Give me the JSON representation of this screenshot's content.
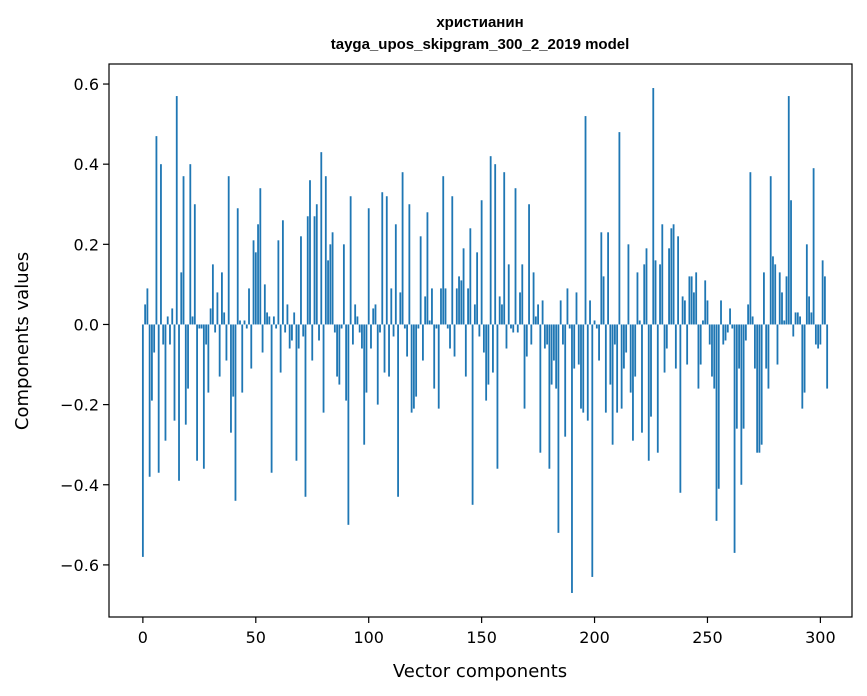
{
  "chart_data": {
    "type": "bar",
    "title": "христианин",
    "subtitle": "tayga_upos_skipgram_300_2_2019 model",
    "xlabel": "Vector components",
    "ylabel": "Components values",
    "xlim": [
      -15,
      314
    ],
    "ylim": [
      -0.73,
      0.65
    ],
    "xticks": [
      0,
      50,
      100,
      150,
      200,
      250,
      300
    ],
    "yticks": [
      -0.6,
      -0.4,
      -0.2,
      0.0,
      0.2,
      0.4,
      0.6
    ],
    "ytick_labels": [
      "−0.6",
      "−0.4",
      "−0.2",
      "0.0",
      "0.2",
      "0.4",
      "0.6"
    ],
    "bar_color": "#1f77b4",
    "values": [
      -0.58,
      0.05,
      0.09,
      -0.38,
      -0.19,
      -0.07,
      0.47,
      -0.37,
      0.4,
      -0.05,
      -0.29,
      0.02,
      -0.05,
      0.04,
      -0.24,
      0.57,
      -0.39,
      0.13,
      0.37,
      -0.25,
      -0.16,
      0.4,
      0.02,
      0.3,
      -0.34,
      -0.01,
      -0.01,
      -0.36,
      -0.05,
      -0.17,
      0.04,
      0.15,
      -0.02,
      0.08,
      -0.13,
      0.13,
      0.03,
      -0.09,
      0.37,
      -0.27,
      -0.18,
      -0.44,
      0.29,
      0.01,
      -0.17,
      0.01,
      -0.01,
      0.09,
      -0.11,
      0.21,
      0.18,
      0.25,
      0.34,
      -0.07,
      0.1,
      0.03,
      0.02,
      -0.37,
      0.02,
      -0.01,
      0.21,
      -0.12,
      0.26,
      -0.02,
      0.05,
      -0.06,
      -0.04,
      0.03,
      -0.34,
      -0.06,
      0.22,
      -0.03,
      -0.43,
      0.27,
      0.36,
      -0.09,
      0.27,
      0.3,
      -0.04,
      0.43,
      -0.22,
      0.37,
      0.16,
      0.2,
      0.23,
      -0.02,
      -0.13,
      -0.15,
      -0.01,
      0.2,
      -0.19,
      -0.5,
      0.32,
      -0.05,
      0.05,
      0.02,
      -0.02,
      -0.06,
      -0.3,
      -0.17,
      0.29,
      -0.06,
      0.04,
      0.05,
      -0.2,
      -0.02,
      0.33,
      -0.12,
      0.32,
      -0.13,
      0.09,
      -0.03,
      0.25,
      -0.43,
      0.08,
      0.38,
      -0.01,
      -0.08,
      0.3,
      -0.22,
      -0.21,
      -0.18,
      -0.01,
      0.22,
      -0.09,
      0.07,
      0.28,
      0.01,
      0.09,
      -0.16,
      -0.01,
      -0.21,
      0.09,
      0.37,
      0.09,
      -0.01,
      -0.06,
      0.32,
      -0.08,
      0.09,
      0.12,
      0.11,
      0.19,
      -0.13,
      0.09,
      0.24,
      -0.45,
      0.05,
      0.18,
      -0.03,
      0.31,
      -0.07,
      -0.19,
      -0.15,
      0.42,
      -0.12,
      0.4,
      -0.36,
      0.07,
      0.05,
      0.38,
      -0.06,
      0.15,
      -0.01,
      -0.02,
      0.34,
      -0.02,
      0.08,
      0.15,
      -0.21,
      -0.08,
      0.3,
      -0.05,
      0.13,
      0.02,
      0.05,
      -0.32,
      0.06,
      -0.06,
      -0.05,
      -0.36,
      -0.15,
      -0.09,
      -0.16,
      -0.52,
      0.06,
      -0.05,
      -0.28,
      0.09,
      -0.01,
      -0.67,
      -0.11,
      0.08,
      -0.1,
      -0.21,
      -0.22,
      0.52,
      -0.24,
      0.06,
      -0.63,
      0.01,
      -0.01,
      -0.09,
      0.23,
      0.12,
      -0.22,
      0.23,
      -0.15,
      -0.3,
      -0.05,
      -0.22,
      0.48,
      -0.21,
      -0.11,
      -0.07,
      0.2,
      -0.17,
      -0.29,
      -0.13,
      0.13,
      0.01,
      -0.27,
      0.15,
      0.19,
      -0.34,
      -0.23,
      0.59,
      0.16,
      -0.32,
      0.15,
      0.25,
      -0.12,
      -0.06,
      0.19,
      0.24,
      0.25,
      -0.11,
      0.22,
      -0.42,
      0.07,
      0.06,
      -0.1,
      0.12,
      0.12,
      0.08,
      0.13,
      -0.16,
      -0.1,
      0.01,
      0.11,
      0.06,
      -0.05,
      -0.13,
      -0.16,
      -0.49,
      -0.41,
      0.06,
      -0.05,
      -0.04,
      -0.02,
      0.04,
      -0.01,
      -0.57,
      -0.26,
      -0.11,
      -0.4,
      -0.26,
      -0.04,
      0.05,
      0.38,
      0.02,
      -0.11,
      -0.32,
      -0.32,
      -0.3,
      0.13,
      -0.11,
      -0.16,
      0.37,
      0.17,
      0.15,
      -0.1,
      0.13,
      0.08,
      0.01,
      0.12,
      0.57,
      0.31,
      -0.03,
      0.03,
      0.03,
      0.02,
      -0.21,
      -0.17,
      0.2,
      0.07,
      0.03,
      0.39,
      -0.05,
      -0.06,
      -0.05,
      0.16,
      0.12,
      -0.16
    ]
  }
}
